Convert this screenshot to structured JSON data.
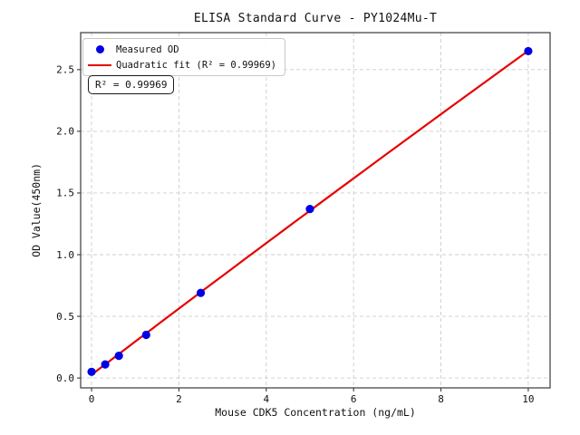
{
  "chart_data": {
    "type": "scatter",
    "title": "ELISA Standard Curve - PY1024Mu-T",
    "xlabel": "Mouse CDK5 Concentration (ng/mL)",
    "ylabel": "OD Value(450nm)",
    "annotation": "R² = 0.99969",
    "x": [
      0,
      0.3125,
      0.625,
      1.25,
      2.5,
      5,
      10
    ],
    "series": [
      {
        "name": "Measured OD",
        "kind": "scatter",
        "color": "#0000e6",
        "values": [
          0.05,
          0.11,
          0.18,
          0.35,
          0.69,
          1.37,
          2.65
        ]
      },
      {
        "name": "Quadratic fit (R² = 0.99969)",
        "kind": "line",
        "color": "#e60000",
        "fit": "quadratic",
        "fit_x_range": [
          0,
          10
        ],
        "r_squared": 0.99969
      }
    ],
    "xticks": [
      0,
      2,
      4,
      6,
      8,
      10
    ],
    "yticks": [
      0,
      0.5,
      1,
      1.5,
      2,
      2.5
    ],
    "xtick_labels": [
      "0",
      "2",
      "4",
      "6",
      "8",
      "10"
    ],
    "ytick_labels": [
      "0.0",
      "0.5",
      "1.0",
      "1.5",
      "2.0",
      "2.5"
    ],
    "xlim": [
      -0.25,
      10.5
    ],
    "ylim": [
      -0.08,
      2.8
    ],
    "grid": true,
    "grid_style": "dashed",
    "legend_position": "upper left",
    "colors": {
      "grid": "#cccccc",
      "spine": "#3a3a3a",
      "tick": "#3a3a3a",
      "text": "#111111",
      "background": "#ffffff"
    }
  }
}
